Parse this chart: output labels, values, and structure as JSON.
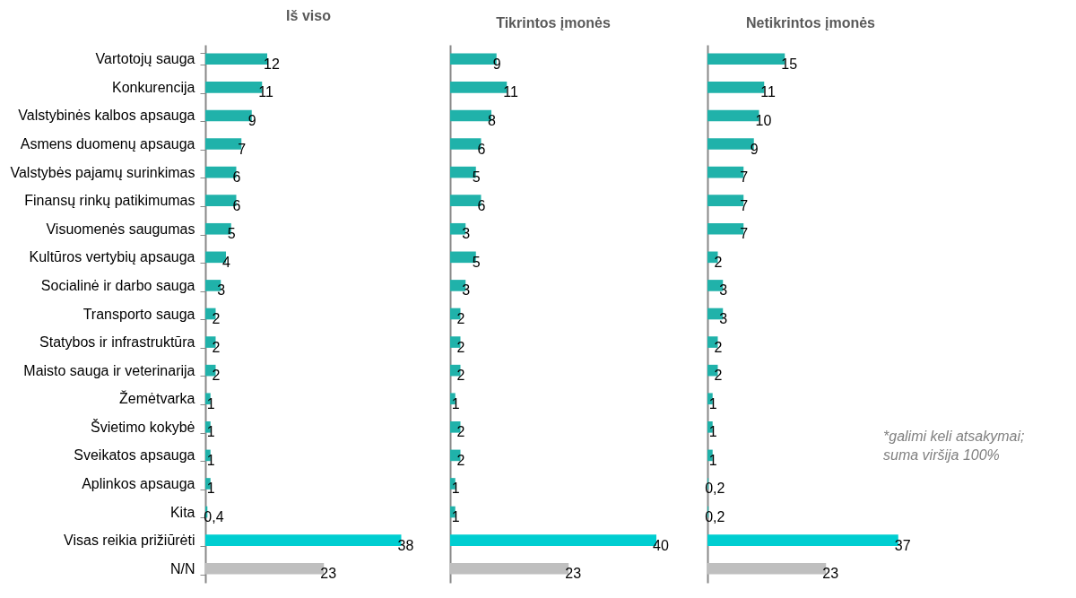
{
  "chart_data": [
    {
      "type": "bar",
      "orientation": "horizontal",
      "title": "Iš viso",
      "tick_labels": "y",
      "categories": [
        "Vartotojų sauga",
        "Konkurencija",
        "Valstybinės kalbos apsauga",
        "Asmens duomenų apsauga",
        "Valstybės pajamų surinkimas",
        "Finansų rinkų patikimumas",
        "Visuomenės saugumas",
        "Kultūros vertybių apsauga",
        "Socialinė ir darbo sauga",
        "Transporto sauga",
        "Statybos ir infrastruktūra",
        "Maisto sauga ir veterinarija",
        "Žemėtvarka",
        "Švietimo kokybė",
        "Sveikatos apsauga",
        "Aplinkos apsauga",
        "Kita",
        "Visas reikia prižiūrėti",
        "N/N"
      ],
      "values": [
        12,
        11,
        9,
        7,
        6,
        6,
        5,
        4,
        3,
        2,
        2,
        2,
        1,
        1,
        1,
        1,
        0.4,
        38,
        23
      ],
      "value_labels": [
        "12",
        "11",
        "9",
        "7",
        "6",
        "6",
        "5",
        "4",
        "3",
        "2",
        "2",
        "2",
        "1",
        "1",
        "1",
        "1",
        "0,4",
        "38",
        "23"
      ],
      "colors": [
        "#20b2aa",
        "#20b2aa",
        "#20b2aa",
        "#20b2aa",
        "#20b2aa",
        "#20b2aa",
        "#20b2aa",
        "#20b2aa",
        "#20b2aa",
        "#20b2aa",
        "#20b2aa",
        "#20b2aa",
        "#20b2aa",
        "#20b2aa",
        "#20b2aa",
        "#20b2aa",
        "#20b2aa",
        "#00ced1",
        "#bfbfbf"
      ]
    },
    {
      "type": "bar",
      "orientation": "horizontal",
      "title": "Tikrintos įmonės",
      "tick_labels": false,
      "categories": [
        null,
        null,
        null,
        null,
        null,
        null,
        null,
        null,
        null,
        null,
        null,
        null,
        null,
        null,
        null,
        null,
        null,
        null,
        null
      ],
      "values": [
        9,
        11,
        8,
        6,
        5,
        6,
        3,
        5,
        3,
        2,
        2,
        2,
        1,
        2,
        2,
        1,
        1,
        40,
        23
      ],
      "value_labels": [
        "9",
        "11",
        "8",
        "6",
        "5",
        "6",
        "3",
        "5",
        "3",
        "2",
        "2",
        "2",
        "1",
        "2",
        "2",
        "1",
        "1",
        "40",
        "23"
      ],
      "colors": [
        "#20b2aa",
        "#20b2aa",
        "#20b2aa",
        "#20b2aa",
        "#20b2aa",
        "#20b2aa",
        "#20b2aa",
        "#20b2aa",
        "#20b2aa",
        "#20b2aa",
        "#20b2aa",
        "#20b2aa",
        "#20b2aa",
        "#20b2aa",
        "#20b2aa",
        "#20b2aa",
        "#20b2aa",
        "#00ced1",
        "#bfbfbf"
      ]
    },
    {
      "type": "bar",
      "orientation": "horizontal",
      "title": "Netikrintos įmonės",
      "tick_labels": false,
      "annotations": [
        "*galimi keli atsakymai;\nsuma viršija 100%"
      ],
      "categories": [
        null,
        null,
        null,
        null,
        null,
        null,
        null,
        null,
        null,
        null,
        null,
        null,
        null,
        null,
        null,
        null,
        null,
        null,
        null
      ],
      "values": [
        15,
        11,
        10,
        9,
        7,
        7,
        7,
        2,
        3,
        3,
        2,
        2,
        1,
        1,
        1,
        0.2,
        0.2,
        37,
        23
      ],
      "value_labels": [
        "15",
        "11",
        "10",
        "9",
        "7",
        "7",
        "7",
        "2",
        "3",
        "3",
        "2",
        "2",
        "1",
        "1",
        "1",
        "0,2",
        "0,2",
        "37",
        "23"
      ],
      "colors": [
        "#20b2aa",
        "#20b2aa",
        "#20b2aa",
        "#20b2aa",
        "#20b2aa",
        "#20b2aa",
        "#20b2aa",
        "#20b2aa",
        "#20b2aa",
        "#20b2aa",
        "#20b2aa",
        "#20b2aa",
        "#20b2aa",
        "#20b2aa",
        "#20b2aa",
        "#20b2aa",
        "#20b2aa",
        "#00ced1",
        "#bfbfbf"
      ]
    }
  ]
}
